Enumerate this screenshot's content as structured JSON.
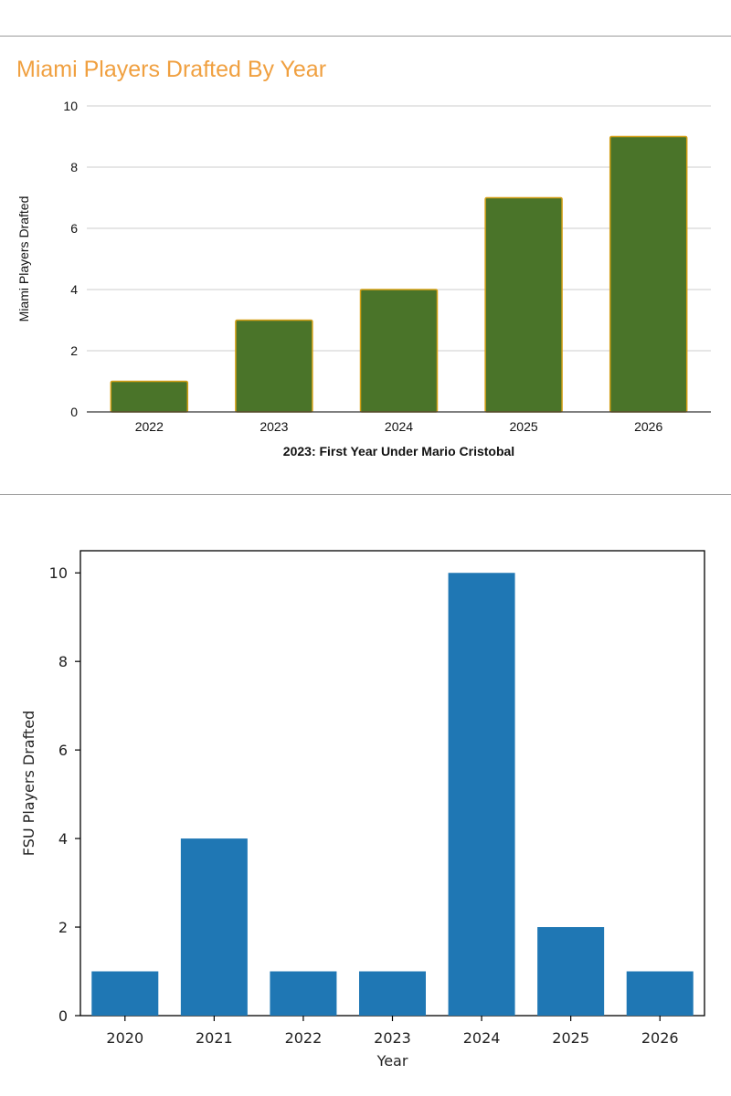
{
  "chart_data": [
    {
      "type": "bar",
      "title": "Miami Players Drafted By Year",
      "xlabel": "2023: First Year Under Mario Cristobal",
      "ylabel": "Miami Players Drafted",
      "categories": [
        "2022",
        "2023",
        "2024",
        "2025",
        "2026"
      ],
      "values": [
        1,
        3,
        4,
        7,
        9
      ],
      "ylim": [
        0,
        10
      ],
      "yticks": [
        "0",
        "2",
        "4",
        "6",
        "8",
        "10"
      ],
      "grid": true,
      "bar_color": "#4a7429",
      "bar_edge_color": "#d4a017",
      "title_color": "#f0a040"
    },
    {
      "type": "bar",
      "title": "",
      "xlabel": "Year",
      "ylabel": "FSU Players Drafted",
      "categories": [
        "2020",
        "2021",
        "2022",
        "2023",
        "2024",
        "2025",
        "2026"
      ],
      "values": [
        1,
        4,
        1,
        1,
        10,
        2,
        1
      ],
      "ylim": [
        0,
        10.5
      ],
      "yticks": [
        "0",
        "2",
        "4",
        "6",
        "8",
        "10"
      ],
      "grid": false,
      "bar_color": "#1f77b4"
    }
  ]
}
